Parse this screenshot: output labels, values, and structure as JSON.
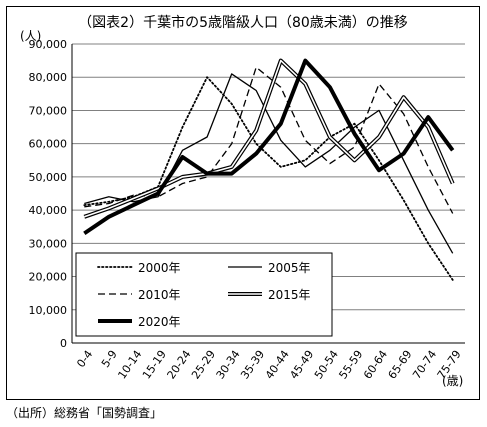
{
  "chart_data": {
    "type": "line",
    "title": "（図表2）千葉市の5歳階級人口（80歳未満）の推移",
    "ylabel": "(人)",
    "xlabel": "(歳)",
    "ylim": [
      0,
      90000
    ],
    "yticks": [
      0,
      10000,
      20000,
      30000,
      40000,
      50000,
      60000,
      70000,
      80000,
      90000
    ],
    "ytick_labels": [
      "0",
      "10,000",
      "20,000",
      "30,000",
      "40,000",
      "50,000",
      "60,000",
      "70,000",
      "80,000",
      "90,000"
    ],
    "categories": [
      "0-4",
      "5-9",
      "10-14",
      "15-19",
      "20-24",
      "25-29",
      "30-34",
      "35-39",
      "40-44",
      "45-49",
      "50-54",
      "55-59",
      "60-64",
      "65-69",
      "70-74",
      "75-79"
    ],
    "grid": true,
    "legend_position": "center-left",
    "series": [
      {
        "name": "2000年",
        "style": "dotted",
        "values": [
          41500,
          42500,
          44000,
          47000,
          65000,
          80000,
          72000,
          60000,
          53000,
          55000,
          62000,
          66000,
          55000,
          43000,
          30000,
          19000
        ]
      },
      {
        "name": "2005年",
        "style": "solid-thin",
        "values": [
          42000,
          44000,
          42500,
          44000,
          58000,
          62000,
          81000,
          76000,
          61000,
          53000,
          58000,
          65000,
          70000,
          55000,
          40000,
          27000
        ]
      },
      {
        "name": "2010年",
        "style": "dashed",
        "values": [
          41000,
          42000,
          44500,
          44000,
          48000,
          50000,
          60000,
          83000,
          77000,
          61000,
          54000,
          59000,
          78000,
          69000,
          53000,
          39000
        ]
      },
      {
        "name": "2015年",
        "style": "double",
        "values": [
          38000,
          40500,
          43500,
          46500,
          50000,
          51000,
          53000,
          64000,
          85000,
          78000,
          62000,
          55000,
          62000,
          74000,
          65000,
          48000
        ]
      },
      {
        "name": "2020年",
        "style": "thick",
        "values": [
          33000,
          38000,
          41500,
          45000,
          56000,
          51000,
          51000,
          57000,
          66000,
          85000,
          77000,
          63000,
          52000,
          57000,
          68000,
          58000
        ]
      }
    ]
  },
  "source": "（出所）総務省「国勢調査」"
}
